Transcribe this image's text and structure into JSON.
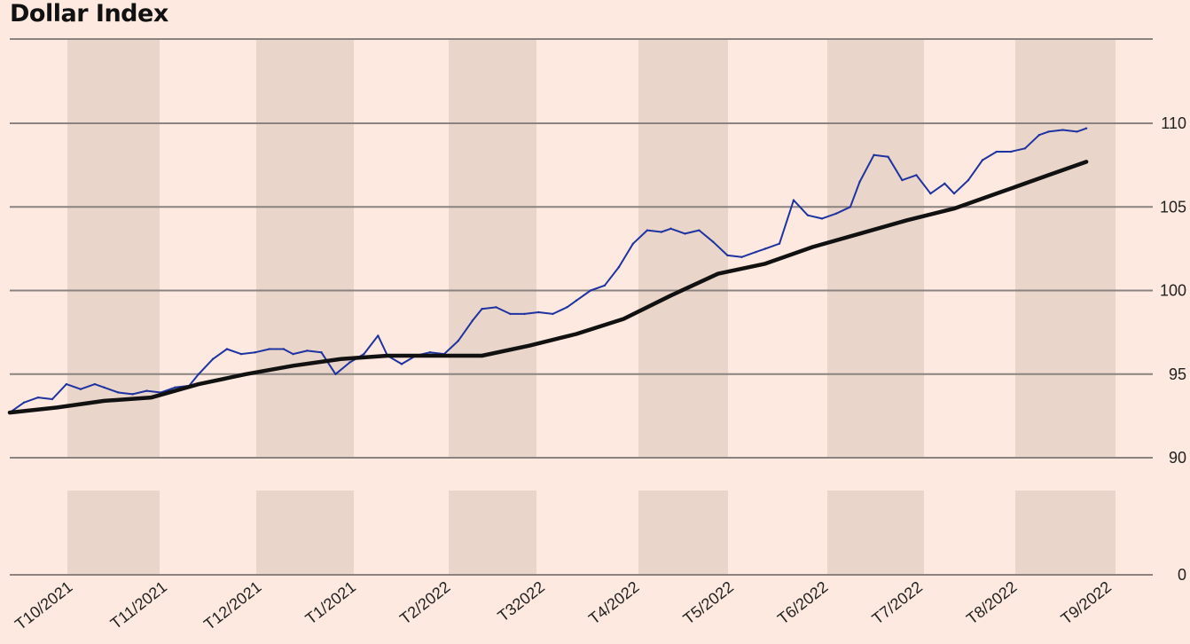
{
  "title": "Dollar Index",
  "chart_data": {
    "type": "line",
    "title": "Dollar Index",
    "xlabel": "",
    "ylabel": "",
    "x_categories": [
      "T10/2021",
      "T11/2021",
      "T12/2021",
      "T1/2021",
      "T2/2022",
      "T32022",
      "T4/2022",
      "T5/2022",
      "T6/2022",
      "T7/2022",
      "T8/2022",
      "T9/2022"
    ],
    "y_ticks": [
      0,
      90,
      95,
      100,
      105,
      110
    ],
    "y_axis_break": "between 0 and 90",
    "grid": true,
    "colors": {
      "background": "#fde9df",
      "band": "#e9d5ca",
      "gridline": "#8a8380",
      "series_index": "#1f33a0",
      "series_trend": "#111111"
    },
    "series": [
      {
        "name": "",
        "color": "#1f33a0",
        "x": [
          0,
          0.15,
          0.3,
          0.45,
          0.6,
          0.75,
          0.9,
          1.0,
          1.15,
          1.3,
          1.45,
          1.6,
          1.75,
          1.9,
          2.0,
          2.15,
          2.3,
          2.45,
          2.6,
          2.75,
          2.9,
          3.0,
          3.15,
          3.3,
          3.45,
          3.6,
          3.75,
          3.9,
          4.0,
          4.15,
          4.3,
          4.45,
          4.6,
          4.75,
          4.9,
          5.0,
          5.15,
          5.3,
          5.45,
          5.6,
          5.75,
          5.9,
          6.0,
          6.15,
          6.3,
          6.45,
          6.6,
          6.75,
          6.9,
          7.0,
          7.15,
          7.3,
          7.45,
          7.6,
          7.75,
          7.9,
          8.0,
          8.15,
          8.3,
          8.45,
          8.6,
          8.75,
          8.9,
          9.0,
          9.15,
          9.3,
          9.45,
          9.6,
          9.75,
          9.9,
          10.0,
          10.15,
          10.3,
          10.45,
          10.6,
          10.75,
          10.9,
          11.0,
          11.15,
          11.3,
          11.4
        ],
        "values": [
          92.7,
          93.3,
          93.6,
          93.5,
          94.4,
          94.1,
          94.4,
          94.2,
          93.9,
          93.8,
          94.0,
          93.9,
          94.2,
          94.3,
          95.0,
          95.9,
          96.5,
          96.2,
          96.3,
          96.5,
          96.5,
          96.2,
          96.4,
          96.3,
          95.0,
          95.7,
          96.2,
          97.3,
          96.1,
          95.6,
          96.1,
          96.3,
          96.2,
          97.0,
          98.2,
          98.9,
          99.0,
          98.6,
          98.6,
          98.7,
          98.6,
          99.0,
          99.4,
          100.0,
          100.3,
          101.4,
          102.8,
          103.6,
          103.5,
          103.7,
          103.4,
          103.6,
          102.9,
          102.1,
          102.0,
          102.3,
          102.5,
          102.8,
          105.4,
          104.5,
          104.3,
          104.6,
          105.0,
          106.5,
          108.1,
          108.0,
          106.6,
          106.9,
          105.8,
          106.4,
          105.8,
          106.6,
          107.8,
          108.3,
          108.3,
          108.5,
          109.3,
          109.5,
          109.6,
          109.5,
          109.7
        ]
      },
      {
        "name": "",
        "color": "#111111",
        "x": [
          0,
          0.5,
          1.0,
          1.5,
          2.0,
          2.5,
          3.0,
          3.5,
          4.0,
          4.5,
          5.0,
          5.5,
          6.0,
          6.5,
          7.0,
          7.5,
          8.0,
          8.5,
          9.0,
          9.5,
          10.0,
          10.5,
          11.0,
          11.4
        ],
        "values": [
          92.7,
          93.0,
          93.4,
          93.6,
          94.4,
          95.0,
          95.5,
          95.9,
          96.1,
          96.1,
          96.1,
          96.7,
          97.4,
          98.3,
          99.7,
          101.0,
          101.6,
          102.6,
          103.4,
          104.2,
          104.9,
          105.9,
          106.9,
          107.7
        ]
      }
    ]
  }
}
